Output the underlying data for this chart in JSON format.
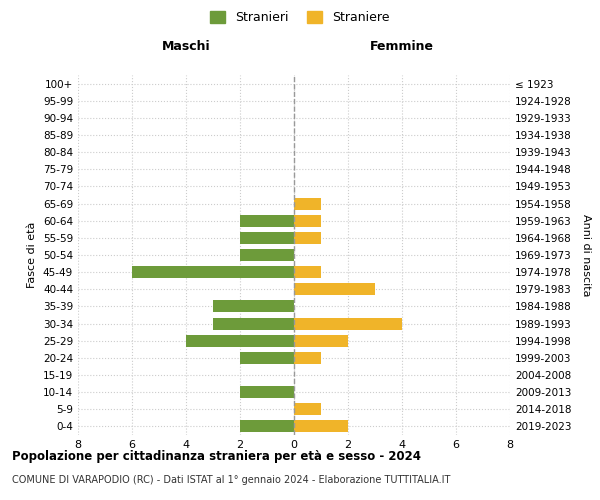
{
  "age_groups_bottom_to_top": [
    "0-4",
    "5-9",
    "10-14",
    "15-19",
    "20-24",
    "25-29",
    "30-34",
    "35-39",
    "40-44",
    "45-49",
    "50-54",
    "55-59",
    "60-64",
    "65-69",
    "70-74",
    "75-79",
    "80-84",
    "85-89",
    "90-94",
    "95-99",
    "100+"
  ],
  "birth_years_bottom_to_top": [
    "2019-2023",
    "2014-2018",
    "2009-2013",
    "2004-2008",
    "1999-2003",
    "1994-1998",
    "1989-1993",
    "1984-1988",
    "1979-1983",
    "1974-1978",
    "1969-1973",
    "1964-1968",
    "1959-1963",
    "1954-1958",
    "1949-1953",
    "1944-1948",
    "1939-1943",
    "1934-1938",
    "1929-1933",
    "1924-1928",
    "≤ 1923"
  ],
  "males_bottom_to_top": [
    2,
    0,
    2,
    0,
    2,
    4,
    3,
    3,
    0,
    6,
    2,
    2,
    2,
    0,
    0,
    0,
    0,
    0,
    0,
    0,
    0
  ],
  "females_bottom_to_top": [
    2,
    1,
    0,
    0,
    1,
    2,
    4,
    0,
    3,
    1,
    0,
    1,
    1,
    1,
    0,
    0,
    0,
    0,
    0,
    0,
    0
  ],
  "male_color": "#6d9b3a",
  "female_color": "#f0b429",
  "title": "Popolazione per cittadinanza straniera per età e sesso - 2024",
  "subtitle": "COMUNE DI VARAPODIO (RC) - Dati ISTAT al 1° gennaio 2024 - Elaborazione TUTTITALIA.IT",
  "header_left": "Maschi",
  "header_right": "Femmine",
  "ylabel_left": "Fasce di età",
  "ylabel_right": "Anni di nascita",
  "legend_male": "Stranieri",
  "legend_female": "Straniere",
  "xlim": 8,
  "background_color": "#ffffff",
  "grid_color": "#cccccc",
  "grid_color2": "#aaaaaa"
}
